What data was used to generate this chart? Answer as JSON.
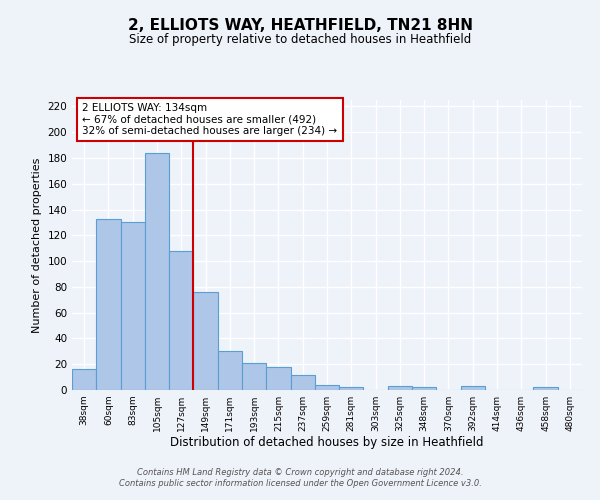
{
  "title": "2, ELLIOTS WAY, HEATHFIELD, TN21 8HN",
  "subtitle": "Size of property relative to detached houses in Heathfield",
  "xlabel": "Distribution of detached houses by size in Heathfield",
  "ylabel": "Number of detached properties",
  "categories": [
    "38sqm",
    "60sqm",
    "83sqm",
    "105sqm",
    "127sqm",
    "149sqm",
    "171sqm",
    "193sqm",
    "215sqm",
    "237sqm",
    "259sqm",
    "281sqm",
    "303sqm",
    "325sqm",
    "348sqm",
    "370sqm",
    "392sqm",
    "414sqm",
    "436sqm",
    "458sqm",
    "480sqm"
  ],
  "values": [
    16,
    133,
    130,
    184,
    108,
    76,
    30,
    21,
    18,
    12,
    4,
    2,
    0,
    3,
    2,
    0,
    3,
    0,
    0,
    2,
    0
  ],
  "bar_color": "#aec6e8",
  "bar_edge_color": "#5a9fd4",
  "bar_edge_width": 0.8,
  "property_line_x": 4.5,
  "property_line_color": "#cc0000",
  "ylim": [
    0,
    225
  ],
  "yticks": [
    0,
    20,
    40,
    60,
    80,
    100,
    120,
    140,
    160,
    180,
    200,
    220
  ],
  "annotation_title": "2 ELLIOTS WAY: 134sqm",
  "annotation_line1": "← 67% of detached houses are smaller (492)",
  "annotation_line2": "32% of semi-detached houses are larger (234) →",
  "annotation_box_color": "#ffffff",
  "annotation_box_edge_color": "#cc0000",
  "background_color": "#eef2f9",
  "grid_color": "#ffffff",
  "footnote1": "Contains HM Land Registry data © Crown copyright and database right 2024.",
  "footnote2": "Contains public sector information licensed under the Open Government Licence v3.0."
}
